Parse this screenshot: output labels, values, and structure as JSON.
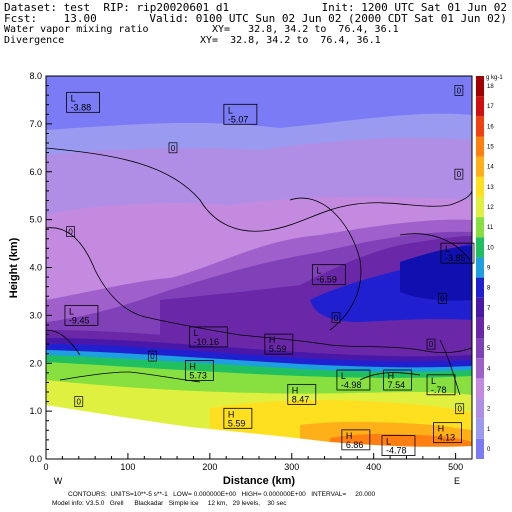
{
  "header": {
    "dataset": "Dataset: test  RIP: rip20020601 d1",
    "init": "Init: 1200 UTC Sat 01 Jun 02",
    "fcst": "Fcst:    13.00",
    "valid": "Valid: 0100 UTC Sun 02 Jun 02 (2000 CDT Sat 01 Jun 02)",
    "field1": "Water vapor mixing ratio",
    "xy1": "XY=   32.8, 34.2 to  76.4, 36.1",
    "field2": "Divergence",
    "xy2": "XY=  32.8, 34.2 to  76.4, 36.1"
  },
  "footer": {
    "line1": "CONTOURS:  UNITS=10**-5 s**-1   LOW= 0.000000E+00   HIGH= 0.000000E+00   INTERVAL=     20.000",
    "line2": "Model info: V3.5.0   Grell      Blackadar   Simple ice     12 km,   29 levels,    30 sec"
  },
  "chart_data": {
    "type": "heatmap",
    "xlabel": "Distance (km)",
    "ylabel": "Height (km)",
    "xlim": [
      0,
      520
    ],
    "ylim": [
      0,
      8
    ],
    "x_ticks": [
      "0",
      "100",
      "200",
      "300",
      "400",
      "500"
    ],
    "y_ticks": [
      "0.0",
      "1.0",
      "2.0",
      "3.0",
      "4.0",
      "5.0",
      "6.0",
      "7.0",
      "8.0"
    ],
    "x_end_labels": {
      "left": "W",
      "right": "E"
    },
    "colorbar": {
      "unit": "g kg-1",
      "levels": [
        "0",
        "1",
        "2",
        "3",
        "4",
        "5",
        "6",
        "7",
        "8",
        "9",
        "10",
        "11",
        "12",
        "13",
        "14",
        "15",
        "16",
        "17",
        "18"
      ],
      "colors": [
        "#7b7bf5",
        "#9a9af0",
        "#b08ee6",
        "#c38ae0",
        "#a060cc",
        "#8040b8",
        "#6a28a8",
        "#4a18a8",
        "#2020d0",
        "#1ea0e0",
        "#20c060",
        "#88e040",
        "#e0f040",
        "#ffe020",
        "#ffb018",
        "#ff8010",
        "#f04010",
        "#d01010",
        "#a00000"
      ]
    },
    "labels": [
      {
        "type": "L",
        "value": "-3.88",
        "x": 30,
        "y": 7.45
      },
      {
        "type": "L",
        "value": "-5.07",
        "x": 222,
        "y": 7.2
      },
      {
        "type": "L",
        "value": "-3.85",
        "x": 487,
        "y": 4.3
      },
      {
        "type": "L",
        "value": "-6.59",
        "x": 330,
        "y": 3.85
      },
      {
        "type": "L",
        "value": "-9.45",
        "x": 28,
        "y": 3.0
      },
      {
        "type": "L",
        "value": "-10.16",
        "x": 180,
        "y": 2.55
      },
      {
        "type": "L",
        "value": "-4.98",
        "x": 360,
        "y": 1.65
      },
      {
        "type": "L",
        "value": "-.78",
        "x": 470,
        "y": 1.55
      },
      {
        "type": "L",
        "value": "-4.78",
        "x": 415,
        "y": 0.28
      },
      {
        "type": "H",
        "value": "5.59",
        "x": 272,
        "y": 2.4
      },
      {
        "type": "H",
        "value": "5.73",
        "x": 175,
        "y": 1.85
      },
      {
        "type": "H",
        "value": "8.47",
        "x": 300,
        "y": 1.35
      },
      {
        "type": "H",
        "value": "7.54",
        "x": 417,
        "y": 1.65
      },
      {
        "type": "H",
        "value": "5.59",
        "x": 222,
        "y": 0.85
      },
      {
        "type": "H",
        "value": "6.86",
        "x": 366,
        "y": 0.4
      },
      {
        "type": "H",
        "value": "4.13",
        "x": 478,
        "y": 0.55
      }
    ],
    "zero_labels": [
      {
        "text": "0",
        "x": 504,
        "y": 7.7
      },
      {
        "text": "0",
        "x": 155,
        "y": 6.5
      },
      {
        "text": "0",
        "x": 504,
        "y": 5.95
      },
      {
        "text": "0",
        "x": 30,
        "y": 4.75
      },
      {
        "text": "0",
        "x": 484,
        "y": 3.35
      },
      {
        "text": "0",
        "x": 354,
        "y": 2.95
      },
      {
        "text": "0",
        "x": 470,
        "y": 2.4
      },
      {
        "text": "0",
        "x": 130,
        "y": 2.15
      },
      {
        "text": "0",
        "x": 40,
        "y": 1.2
      },
      {
        "text": "0",
        "x": 505,
        "y": 1.05
      }
    ]
  }
}
